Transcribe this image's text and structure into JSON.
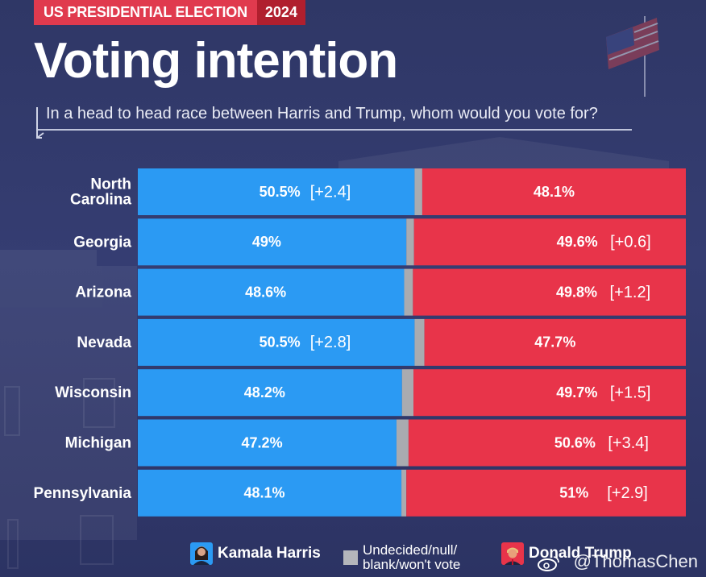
{
  "header": {
    "tag_label": "US PRESIDENTIAL ELECTION",
    "tag_year": "2024",
    "title": "Voting intention",
    "subtitle": "In a head to head race between Harris and Trump, whom would you vote for?"
  },
  "colors": {
    "harris": "#2b9af3",
    "undecided": "#a9abb0",
    "trump": "#e8344a",
    "tag_red": "#e03a4e",
    "background": "#323a6c"
  },
  "chart_data": {
    "type": "bar",
    "orientation": "horizontal-stacked-100",
    "categories": [
      "North Carolina",
      "Georgia",
      "Arizona",
      "Nevada",
      "Wisconsin",
      "Michigan",
      "Pennsylvania"
    ],
    "category_lines": [
      [
        "North",
        "Carolina"
      ],
      [
        "Georgia"
      ],
      [
        "Arizona"
      ],
      [
        "Nevada"
      ],
      [
        "Wisconsin"
      ],
      [
        "Michigan"
      ],
      [
        "Pennsylvania"
      ]
    ],
    "series": [
      {
        "name": "Kamala Harris",
        "values": [
          50.5,
          49,
          48.6,
          50.5,
          48.2,
          47.2,
          48.1
        ]
      },
      {
        "name": "Undecided/null/blank/won't vote",
        "values": [
          1.4,
          1.4,
          1.6,
          1.8,
          2.1,
          2.2,
          0.9
        ]
      },
      {
        "name": "Donald Trump",
        "values": [
          48.1,
          49.6,
          49.8,
          47.7,
          49.7,
          50.6,
          51
        ]
      }
    ],
    "harris_labels": [
      "50.5%",
      "49%",
      "48.6%",
      "50.5%",
      "48.2%",
      "47.2%",
      "48.1%"
    ],
    "trump_labels": [
      "48.1%",
      "49.6%",
      "49.8%",
      "47.7%",
      "49.7%",
      "50.6%",
      "51%"
    ],
    "harris_margins": [
      "[+2.4]",
      "",
      "",
      "[+2.8]",
      "",
      "",
      ""
    ],
    "trump_margins": [
      "",
      "[+0.6]",
      "[+1.2]",
      "",
      "[+1.5]",
      "[+3.4]",
      "[+2.9]"
    ],
    "legend_placement": "bottom",
    "grid": false
  },
  "legend": {
    "harris": "Kamala Harris",
    "undecided_line1": "Undecided/null/",
    "undecided_line2": "blank/won't vote",
    "trump": "Donald Trump"
  },
  "watermark": "@ThomasChen"
}
